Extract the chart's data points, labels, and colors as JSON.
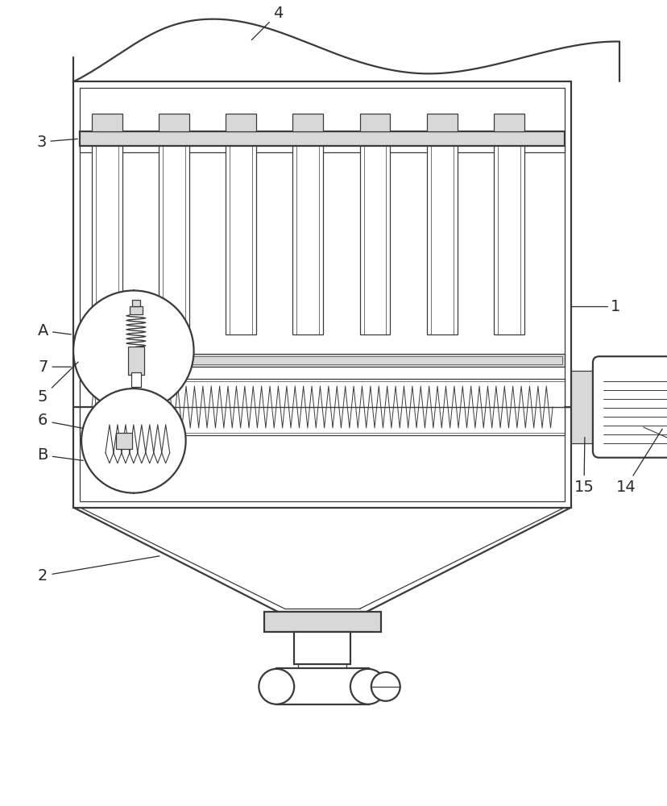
{
  "bg_color": "#ffffff",
  "line_color": "#3a3a3a",
  "line_width": 1.6,
  "thin_line": 0.9,
  "fill_light": "#d8d8d8",
  "fill_medium": "#c0c0c0",
  "annotation_color": "#2a2a2a"
}
